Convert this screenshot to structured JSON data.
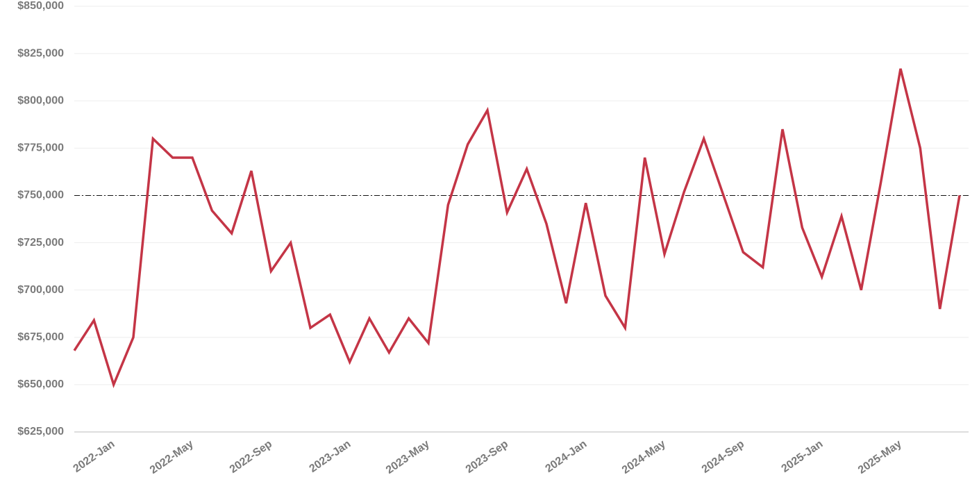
{
  "chart_data": {
    "type": "line",
    "categories": [
      null,
      null,
      "2022-Jan",
      null,
      null,
      null,
      "2022-May",
      null,
      null,
      null,
      "2022-Sep",
      null,
      null,
      null,
      "2023-Jan",
      null,
      null,
      null,
      "2023-May",
      null,
      null,
      null,
      "2023-Sep",
      null,
      null,
      null,
      "2024-Jan",
      null,
      null,
      null,
      "2024-May",
      null,
      null,
      null,
      "2024-Sep",
      null,
      null,
      null,
      "2025-Jan",
      null,
      null,
      null,
      "2025-May",
      null,
      null,
      null
    ],
    "values": [
      668000,
      684000,
      650000,
      675000,
      780000,
      770000,
      770000,
      742000,
      730000,
      763000,
      710000,
      725000,
      680000,
      687000,
      662000,
      685000,
      667000,
      685000,
      672000,
      745000,
      777000,
      795000,
      741000,
      764000,
      735000,
      693000,
      746000,
      697000,
      680000,
      770000,
      719000,
      752000,
      780000,
      750000,
      720000,
      712000,
      785000,
      733000,
      707000,
      739000,
      700000,
      757000,
      817000,
      775000,
      690000,
      750000
    ],
    "color": "#c43546",
    "reference_line": 750000,
    "ylim": [
      625000,
      850000
    ],
    "yticks": [
      {
        "value": 625000,
        "label": "$625,000"
      },
      {
        "value": 650000,
        "label": "$650,000"
      },
      {
        "value": 675000,
        "label": "$675,000"
      },
      {
        "value": 700000,
        "label": "$700,000"
      },
      {
        "value": 725000,
        "label": "$725,000"
      },
      {
        "value": 750000,
        "label": "$750,000"
      },
      {
        "value": 775000,
        "label": "$775,000"
      },
      {
        "value": 800000,
        "label": "$800,000"
      },
      {
        "value": 825000,
        "label": "$825,000"
      },
      {
        "value": 850000,
        "label": "$850,000"
      }
    ],
    "grid": true
  }
}
